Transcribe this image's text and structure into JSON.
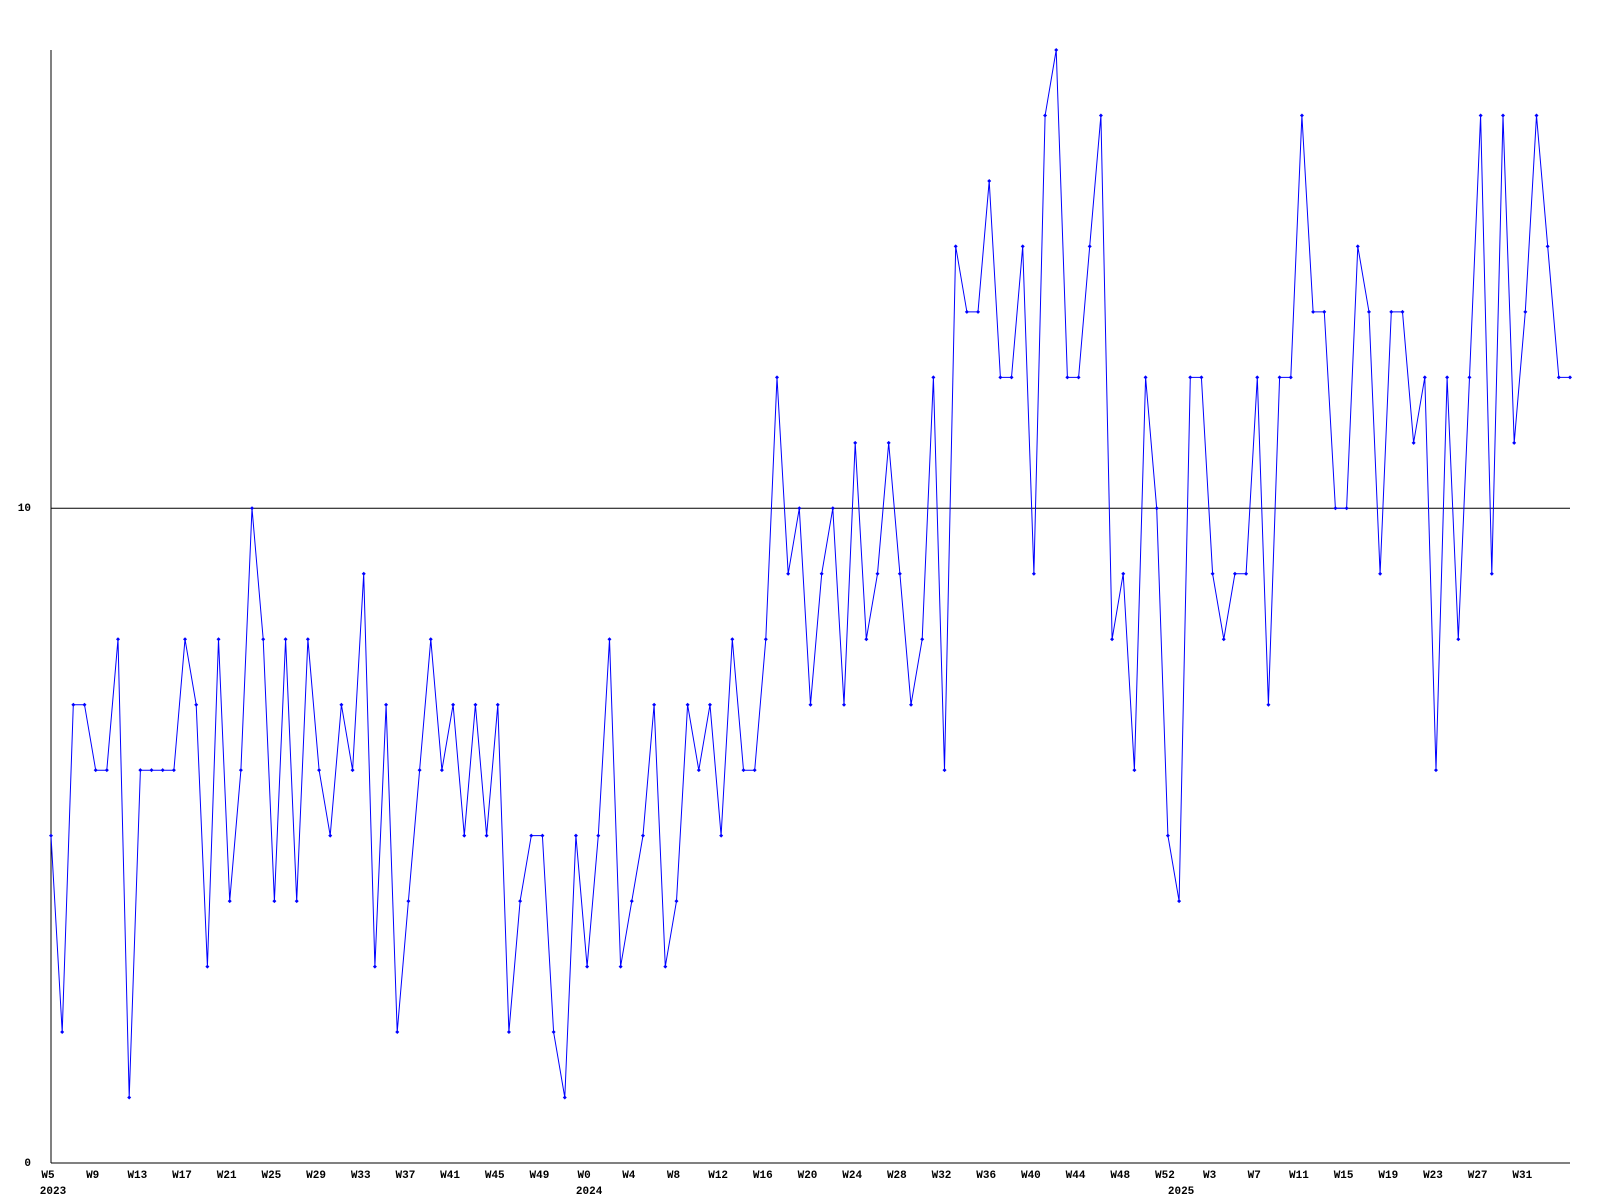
{
  "chart_data": {
    "type": "line",
    "color": "#0000ff",
    "categories": [
      "W5",
      null,
      null,
      null,
      "W9",
      null,
      null,
      null,
      "W13",
      null,
      null,
      null,
      "W17",
      null,
      null,
      null,
      "W21",
      null,
      null,
      null,
      "W25",
      null,
      null,
      null,
      "W29",
      null,
      null,
      null,
      "W33",
      null,
      null,
      null,
      "W37",
      null,
      null,
      null,
      "W41",
      null,
      null,
      null,
      "W45",
      null,
      null,
      null,
      "W49",
      null,
      null,
      null,
      "W0",
      null,
      null,
      null,
      "W4",
      null,
      null,
      null,
      "W8",
      null,
      null,
      null,
      "W12",
      null,
      null,
      null,
      "W16",
      null,
      null,
      null,
      "W20",
      null,
      null,
      null,
      "W24",
      null,
      null,
      null,
      "W28",
      null,
      null,
      null,
      "W32",
      null,
      null,
      null,
      "W36",
      null,
      null,
      null,
      "W40",
      null,
      null,
      null,
      "W44",
      null,
      null,
      null,
      "W48",
      null,
      null,
      null,
      "W52",
      null,
      null,
      null,
      "W3",
      null,
      null,
      null,
      "W7",
      null,
      null,
      null,
      "W11",
      null,
      null,
      null,
      "W15",
      null,
      null,
      null,
      "W19",
      null,
      null,
      null,
      "W23",
      null,
      null,
      null,
      "W27",
      null,
      null,
      null,
      "W31",
      null,
      null,
      null,
      null
    ],
    "category_years": [
      "2023",
      null,
      null,
      null,
      null,
      null,
      null,
      null,
      null,
      null,
      null,
      null,
      null,
      null,
      null,
      null,
      null,
      null,
      null,
      null,
      null,
      null,
      null,
      null,
      null,
      null,
      null,
      null,
      null,
      null,
      null,
      null,
      null,
      null,
      null,
      null,
      null,
      null,
      null,
      null,
      null,
      null,
      null,
      null,
      null,
      null,
      null,
      null,
      "2024",
      null,
      null,
      null,
      null,
      null,
      null,
      null,
      null,
      null,
      null,
      null,
      null,
      null,
      null,
      null,
      null,
      null,
      null,
      null,
      null,
      null,
      null,
      null,
      null,
      null,
      null,
      null,
      null,
      null,
      null,
      null,
      null,
      null,
      null,
      null,
      null,
      null,
      null,
      null,
      null,
      null,
      null,
      null,
      null,
      null,
      null,
      null,
      null,
      null,
      null,
      null,
      null,
      "2025",
      null,
      null,
      null,
      null,
      null,
      null,
      null,
      null,
      null,
      null,
      null,
      null,
      null,
      null,
      null,
      null,
      null,
      null,
      null,
      null,
      null,
      null,
      null,
      null,
      null,
      null,
      null,
      null,
      null,
      null,
      null,
      null,
      null,
      null
    ],
    "values": [
      5,
      2,
      7,
      7,
      6,
      6,
      8,
      1,
      6,
      6,
      6,
      6,
      8,
      7,
      3,
      8,
      4,
      6,
      10,
      8,
      4,
      8,
      4,
      8,
      6,
      5,
      7,
      6,
      9,
      3,
      7,
      2,
      4,
      6,
      8,
      6,
      7,
      5,
      7,
      5,
      7,
      2,
      4,
      5,
      5,
      2,
      1,
      5,
      3,
      5,
      8,
      3,
      4,
      5,
      7,
      3,
      4,
      7,
      6,
      7,
      5,
      8,
      6,
      6,
      8,
      12,
      9,
      10,
      7,
      9,
      10,
      7,
      11,
      8,
      9,
      11,
      9,
      7,
      8,
      12,
      6,
      14,
      13,
      13,
      15,
      12,
      12,
      14,
      9,
      16,
      17,
      12,
      12,
      14,
      16,
      8,
      9,
      6,
      12,
      10,
      5,
      4,
      12,
      12,
      9,
      8,
      9,
      9,
      12,
      7,
      12,
      12,
      16,
      13,
      13,
      10,
      10,
      14,
      13,
      9,
      13,
      13,
      11,
      12,
      6,
      12,
      8,
      12,
      16,
      9,
      16,
      11,
      13,
      16,
      14,
      12,
      12
    ],
    "ylim": [
      0,
      17
    ],
    "yticks": [
      0,
      10
    ],
    "grid": true
  }
}
